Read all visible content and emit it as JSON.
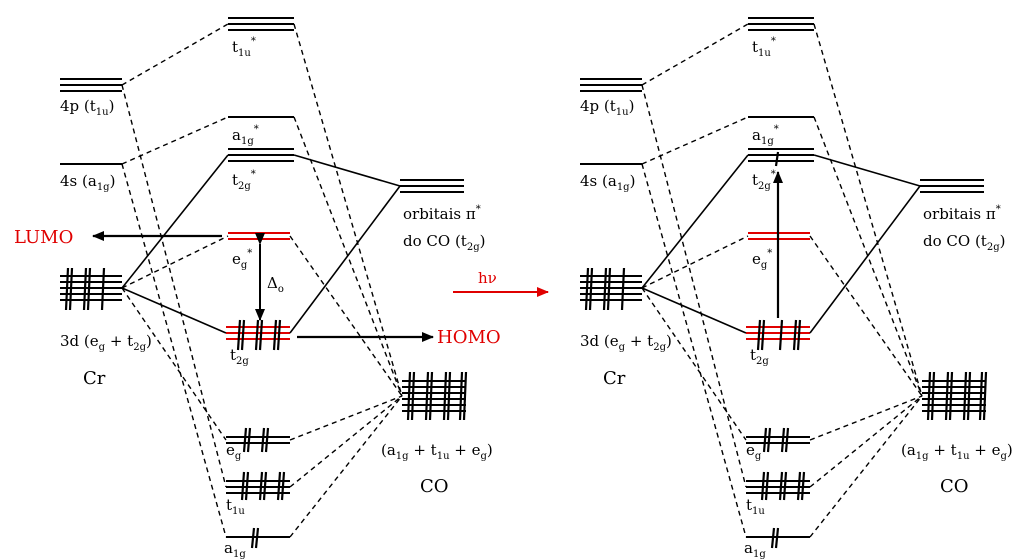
{
  "panels": [
    {
      "id": "left",
      "metal": {
        "name": "Cr",
        "d_label": {
          "base": "3d (e",
          "sub1": "g",
          "mid": " + t",
          "sub2": "2g",
          "end": ")"
        },
        "s_label": {
          "base": "4s (a",
          "sub": "1g",
          "end": ")"
        },
        "p_label": {
          "base": "4p (t",
          "sub": "1u",
          "end": ")"
        }
      },
      "mo": {
        "t1u_star": {
          "base": "t",
          "sub": "1u",
          "sup": "*"
        },
        "a1g_star": {
          "base": "a",
          "sub": "1g",
          "sup": "*"
        },
        "t2g_star": {
          "base": "t",
          "sub": "2g",
          "sup": "*"
        },
        "eg_star": {
          "base": "e",
          "sub": "g",
          "sup": "*"
        },
        "t2g": {
          "base": "t",
          "sub": "2g"
        },
        "eg": {
          "base": "e",
          "sub": "g"
        },
        "t1u": {
          "base": "t",
          "sub": "1u"
        },
        "a1g": {
          "base": "a",
          "sub": "1g"
        }
      },
      "ligand": {
        "name": "CO",
        "pi_label_1": "orbitais π",
        "pi_label_sup": "*",
        "pi_label_2": {
          "base": "do CO (t",
          "sub": "2g",
          "end": ")"
        },
        "sigma_label": {
          "pre": "(a",
          "s1": "1g",
          "m1": " + t",
          "s2": "1u",
          "m2": " + e",
          "s3": "g",
          "end": ")"
        }
      },
      "annotations": {
        "lumo": "LUMO",
        "homo": "HOMO",
        "delta": "Δ",
        "delta_sub": "o"
      }
    },
    {
      "id": "right",
      "metal": {
        "name": "Cr",
        "d_label": {
          "base": "3d (e",
          "sub1": "g",
          "mid": " + t",
          "sub2": "2g",
          "end": ")"
        },
        "s_label": {
          "base": "4s (a",
          "sub": "1g",
          "end": ")"
        },
        "p_label": {
          "base": "4p (t",
          "sub": "1u",
          "end": ")"
        }
      },
      "mo": {
        "t1u_star": {
          "base": "t",
          "sub": "1u",
          "sup": "*"
        },
        "a1g_star": {
          "base": "a",
          "sub": "1g",
          "sup": "*"
        },
        "t2g_star": {
          "base": "t",
          "sub": "2g",
          "sup": "*"
        },
        "eg_star": {
          "base": "e",
          "sub": "g",
          "sup": "*"
        },
        "t2g": {
          "base": "t",
          "sub": "2g"
        },
        "eg": {
          "base": "e",
          "sub": "g"
        },
        "t1u": {
          "base": "t",
          "sub": "1u"
        },
        "a1g": {
          "base": "a",
          "sub": "1g"
        }
      },
      "ligand": {
        "name": "CO",
        "pi_label_1": "orbitais π",
        "pi_label_sup": "*",
        "pi_label_2": {
          "base": "do CO (t",
          "sub": "2g",
          "end": ")"
        },
        "sigma_label": {
          "pre": "(a",
          "s1": "1g",
          "m1": " + t",
          "s2": "1u",
          "m2": " + e",
          "s3": "g",
          "end": ")"
        }
      }
    }
  ],
  "photon": "hν",
  "colors": {
    "accent": "#e00000",
    "line": "#000000"
  }
}
